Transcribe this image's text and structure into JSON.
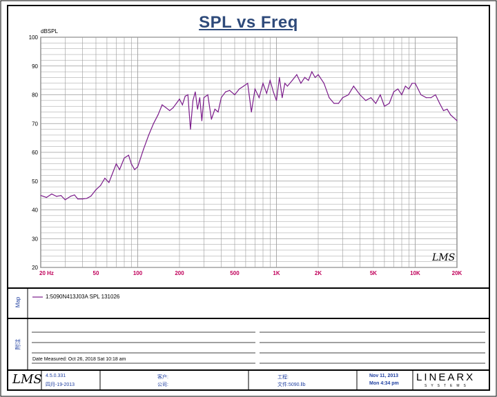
{
  "chart_data": {
    "type": "line",
    "title": "SPL vs Freq",
    "ylabel": "dBSPL",
    "xlabel": "",
    "x_scale": "log",
    "xlim": [
      20,
      20000
    ],
    "ylim": [
      20,
      100
    ],
    "x_ticks": [
      {
        "value": 20,
        "label": "20 Hz"
      },
      {
        "value": 50,
        "label": "50"
      },
      {
        "value": 100,
        "label": "100"
      },
      {
        "value": 200,
        "label": "200"
      },
      {
        "value": 500,
        "label": "500"
      },
      {
        "value": 1000,
        "label": "1K"
      },
      {
        "value": 2000,
        "label": "2K"
      },
      {
        "value": 5000,
        "label": "5K"
      },
      {
        "value": 10000,
        "label": "10K"
      },
      {
        "value": 20000,
        "label": "20K"
      }
    ],
    "y_ticks": [
      20,
      30,
      40,
      50,
      60,
      70,
      80,
      90,
      100
    ],
    "grid": true,
    "series": [
      {
        "name": "1:5090N413J03A SPL 131026",
        "color": "#7a1a8a",
        "x": [
          20,
          22,
          24,
          26,
          28,
          30,
          33,
          35,
          37,
          40,
          43,
          46,
          50,
          54,
          58,
          62,
          65,
          70,
          74,
          80,
          86,
          90,
          95,
          100,
          110,
          120,
          130,
          140,
          150,
          160,
          170,
          180,
          190,
          200,
          210,
          220,
          230,
          240,
          250,
          260,
          270,
          280,
          290,
          300,
          320,
          340,
          360,
          380,
          400,
          430,
          460,
          500,
          540,
          580,
          620,
          660,
          700,
          750,
          800,
          850,
          900,
          950,
          1000,
          1050,
          1100,
          1150,
          1200,
          1300,
          1400,
          1500,
          1600,
          1700,
          1800,
          1900,
          2000,
          2200,
          2400,
          2600,
          2800,
          3000,
          3300,
          3600,
          4000,
          4400,
          4800,
          5200,
          5600,
          6000,
          6500,
          7000,
          7500,
          8000,
          8500,
          9000,
          9500,
          10000,
          11000,
          12000,
          13000,
          14000,
          15000,
          16000,
          17000,
          18000,
          19000,
          20000
        ],
        "y": [
          45,
          44.3,
          45.5,
          44.7,
          45,
          43.5,
          44.8,
          45.2,
          43.8,
          43.8,
          44,
          44.8,
          47,
          48.5,
          51,
          49.5,
          52,
          56,
          54,
          58,
          59,
          56,
          54,
          55,
          61,
          66,
          70,
          73,
          76.5,
          75.5,
          74.5,
          75.5,
          77,
          78.5,
          76.5,
          79.5,
          80,
          68,
          78,
          81,
          75,
          79,
          71,
          79,
          80,
          71.5,
          75,
          74,
          79,
          81,
          81.5,
          80,
          82,
          83,
          84,
          74,
          82,
          79,
          84,
          80.5,
          85,
          81,
          78,
          86,
          79,
          84,
          83,
          85,
          87,
          84,
          86,
          85,
          88,
          86,
          87,
          84,
          79,
          77,
          77,
          79,
          80,
          83,
          80,
          78,
          79,
          77,
          80,
          76,
          77,
          81,
          82,
          80,
          83,
          82,
          84,
          84,
          80,
          79,
          79,
          80,
          77,
          74.5,
          75,
          73,
          72,
          71
        ]
      }
    ]
  },
  "legend": {
    "tag": "Map",
    "series_label": "1:5090N413J03A SPL 131026"
  },
  "notes": {
    "tag": "附注",
    "date_measured": "Date Measured: Oct 26, 2018  Sat 10:18 am"
  },
  "footer": {
    "version": "4.5.0.331",
    "date_cn": "四月-19-2013",
    "customer_label": "客户:",
    "company_label": "公司:",
    "project_label": "工程:",
    "file_label": "文件:5090.llb",
    "date": "Nov 11, 2013",
    "time": "Mon  4:34 pm",
    "brand_top": "LINEARX",
    "brand_bottom": "SYSTEMS"
  },
  "watermark": "LMS",
  "logo": "LMS"
}
